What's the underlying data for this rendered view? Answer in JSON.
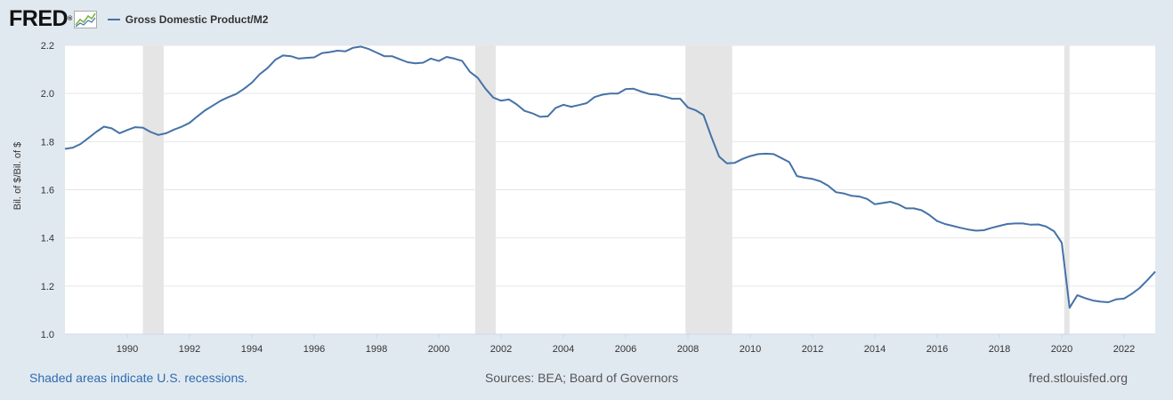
{
  "header": {
    "logo_text": "FRED",
    "logo_mark": "®",
    "logo_icon": "line-chart-icon",
    "series_label": "Gross Domestic Product/M2",
    "series_color": "#4572a7"
  },
  "footer": {
    "recession_note": "Shaded areas indicate U.S. recessions.",
    "sources": "Sources: BEA; Board of Governors",
    "site": "fred.stlouisfed.org"
  },
  "chart_data": {
    "type": "line",
    "title": "",
    "xlabel": "",
    "ylabel": "Bil. of $/Bil. of $",
    "xlim": [
      1988.0,
      2023.0
    ],
    "ylim": [
      1.0,
      2.2
    ],
    "y_ticks": [
      "1.0",
      "1.2",
      "1.4",
      "1.6",
      "1.8",
      "2.0",
      "2.2"
    ],
    "x_ticks": [
      "1990",
      "1992",
      "1994",
      "1996",
      "1998",
      "2000",
      "2002",
      "2004",
      "2006",
      "2008",
      "2010",
      "2012",
      "2014",
      "2016",
      "2018",
      "2020",
      "2022"
    ],
    "grid": true,
    "legend": "top-left",
    "recession_color": "#e5e5e5",
    "recessions": [
      [
        1990.5,
        1991.17
      ],
      [
        2001.17,
        2001.83
      ],
      [
        2007.92,
        2009.42
      ],
      [
        2020.08,
        2020.25
      ]
    ],
    "series": [
      {
        "name": "Gross Domestic Product/M2",
        "color": "#4572a7",
        "x": [
          1988.0,
          1988.25,
          1988.5,
          1988.75,
          1989.0,
          1989.25,
          1989.5,
          1989.75,
          1990.0,
          1990.25,
          1990.5,
          1990.75,
          1991.0,
          1991.25,
          1991.5,
          1991.75,
          1992.0,
          1992.25,
          1992.5,
          1992.75,
          1993.0,
          1993.25,
          1993.5,
          1993.75,
          1994.0,
          1994.25,
          1994.5,
          1994.75,
          1995.0,
          1995.25,
          1995.5,
          1995.75,
          1996.0,
          1996.25,
          1996.5,
          1996.75,
          1997.0,
          1997.25,
          1997.5,
          1997.75,
          1998.0,
          1998.25,
          1998.5,
          1998.75,
          1999.0,
          1999.25,
          1999.5,
          1999.75,
          2000.0,
          2000.25,
          2000.5,
          2000.75,
          2001.0,
          2001.25,
          2001.5,
          2001.75,
          2002.0,
          2002.25,
          2002.5,
          2002.75,
          2003.0,
          2003.25,
          2003.5,
          2003.75,
          2004.0,
          2004.25,
          2004.5,
          2004.75,
          2005.0,
          2005.25,
          2005.5,
          2005.75,
          2006.0,
          2006.25,
          2006.5,
          2006.75,
          2007.0,
          2007.25,
          2007.5,
          2007.75,
          2008.0,
          2008.25,
          2008.5,
          2008.75,
          2009.0,
          2009.25,
          2009.5,
          2009.75,
          2010.0,
          2010.25,
          2010.5,
          2010.75,
          2011.0,
          2011.25,
          2011.5,
          2011.75,
          2012.0,
          2012.25,
          2012.5,
          2012.75,
          2013.0,
          2013.25,
          2013.5,
          2013.75,
          2014.0,
          2014.25,
          2014.5,
          2014.75,
          2015.0,
          2015.25,
          2015.5,
          2015.75,
          2016.0,
          2016.25,
          2016.5,
          2016.75,
          2017.0,
          2017.25,
          2017.5,
          2017.75,
          2018.0,
          2018.25,
          2018.5,
          2018.75,
          2019.0,
          2019.25,
          2019.5,
          2019.75,
          2020.0,
          2020.25,
          2020.5,
          2020.75,
          2021.0,
          2021.25,
          2021.5,
          2021.75,
          2022.0,
          2022.25,
          2022.5,
          2022.75,
          2023.0
        ],
        "values": [
          1.77,
          1.775,
          1.79,
          1.815,
          1.84,
          1.862,
          1.855,
          1.835,
          1.848,
          1.86,
          1.858,
          1.84,
          1.828,
          1.835,
          1.85,
          1.862,
          1.878,
          1.905,
          1.93,
          1.95,
          1.97,
          1.985,
          1.998,
          2.02,
          2.045,
          2.08,
          2.105,
          2.14,
          2.158,
          2.155,
          2.145,
          2.148,
          2.15,
          2.168,
          2.172,
          2.178,
          2.175,
          2.19,
          2.195,
          2.185,
          2.17,
          2.155,
          2.155,
          2.142,
          2.13,
          2.125,
          2.128,
          2.145,
          2.135,
          2.152,
          2.145,
          2.135,
          2.09,
          2.065,
          2.02,
          1.983,
          1.97,
          1.975,
          1.955,
          1.928,
          1.918,
          1.903,
          1.905,
          1.94,
          1.953,
          1.945,
          1.952,
          1.96,
          1.985,
          1.995,
          2.0,
          2.0,
          2.018,
          2.02,
          2.008,
          1.998,
          1.995,
          1.987,
          1.978,
          1.978,
          1.942,
          1.93,
          1.91,
          1.82,
          1.738,
          1.71,
          1.712,
          1.728,
          1.74,
          1.748,
          1.75,
          1.748,
          1.732,
          1.715,
          1.657,
          1.65,
          1.645,
          1.635,
          1.617,
          1.59,
          1.585,
          1.575,
          1.572,
          1.562,
          1.54,
          1.545,
          1.55,
          1.54,
          1.523,
          1.523,
          1.515,
          1.495,
          1.47,
          1.458,
          1.45,
          1.442,
          1.435,
          1.43,
          1.432,
          1.442,
          1.45,
          1.458,
          1.46,
          1.46,
          1.455,
          1.456,
          1.447,
          1.428,
          1.38,
          1.11,
          1.162,
          1.15,
          1.14,
          1.135,
          1.133,
          1.145,
          1.148,
          1.168,
          1.192,
          1.225,
          1.26
        ]
      }
    ]
  }
}
